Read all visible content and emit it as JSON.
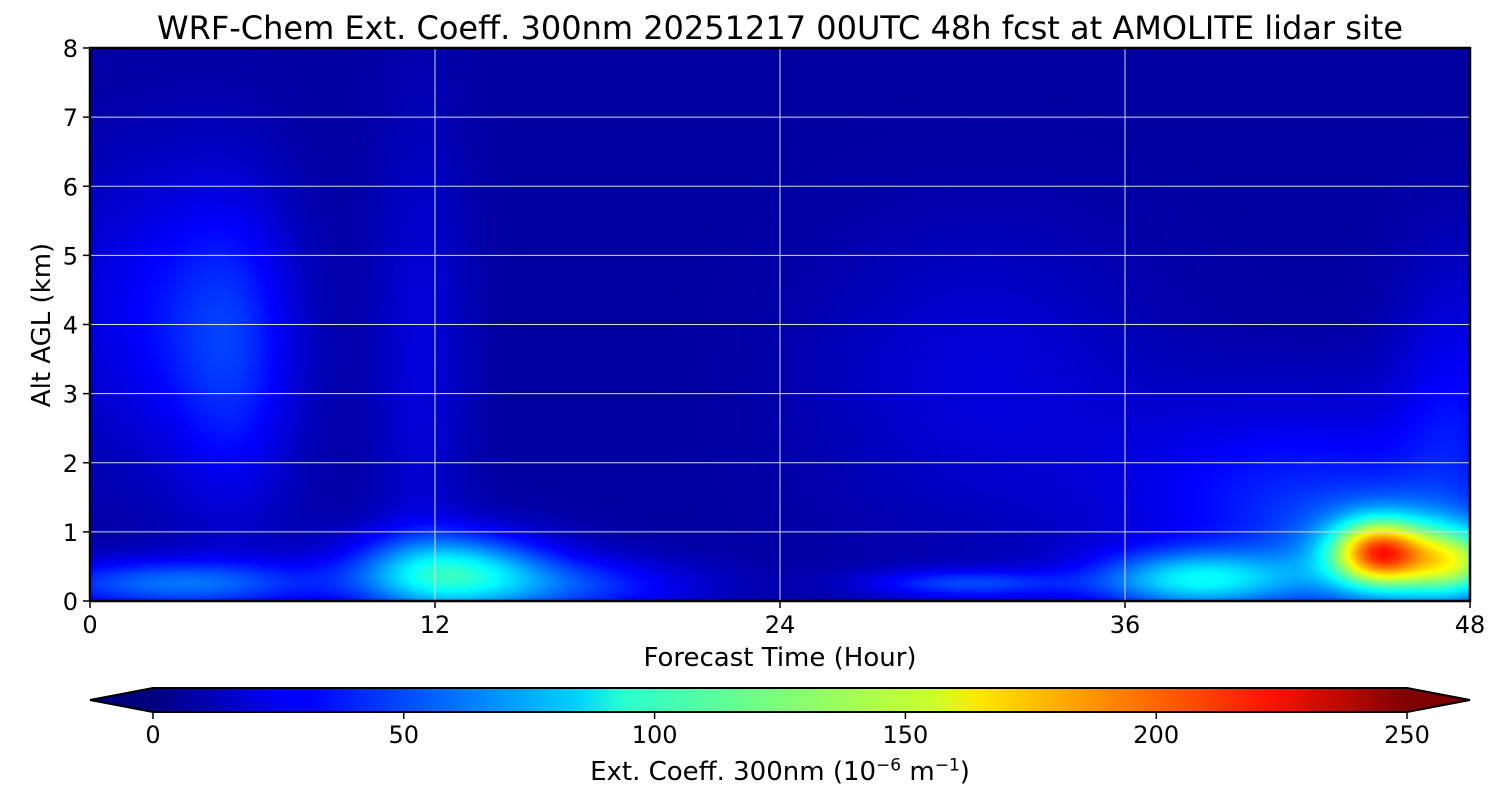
{
  "chart_data": {
    "type": "heatmap",
    "title": "WRF-Chem Ext. Coeff. 300nm  20251217 00UTC 48h fcst at AMOLITE lidar site",
    "xlabel": "Forecast Time (Hour)",
    "ylabel": "Alt AGL (km)",
    "xlim": [
      0,
      48
    ],
    "ylim": [
      0,
      8
    ],
    "xticks": [
      0,
      12,
      24,
      36,
      48
    ],
    "xtick_labels": [
      "0",
      "12",
      "24",
      "36",
      "48"
    ],
    "yticks": [
      0,
      1,
      2,
      3,
      4,
      5,
      6,
      7,
      8
    ],
    "ytick_labels": [
      "0",
      "1",
      "2",
      "3",
      "4",
      "5",
      "6",
      "7",
      "8"
    ],
    "grid": true,
    "colormap": "jet",
    "colorbar": {
      "orientation": "horizontal",
      "range": [
        0,
        250
      ],
      "extend": "both",
      "ticks": [
        0,
        50,
        100,
        150,
        200,
        250
      ],
      "tick_labels": [
        "0",
        "50",
        "100",
        "150",
        "200",
        "250"
      ],
      "label_main": "Ext. Coeff. 300nm  (10",
      "label_exp1": "−6",
      "label_mid": " m",
      "label_exp2": "−1",
      "label_end": ")"
    },
    "background_value": 8,
    "features": [
      {
        "cx": 5,
        "cy": 3.6,
        "sx": 1.6,
        "sy": 1.6,
        "value": 30
      },
      {
        "cx": 2,
        "cy": 4.2,
        "sx": 2.4,
        "sy": 1.5,
        "value": 20
      },
      {
        "cx": 11.5,
        "cy": 3.5,
        "sx": 1.2,
        "sy": 2.6,
        "value": 14
      },
      {
        "cx": 31,
        "cy": 3.2,
        "sx": 4.0,
        "sy": 1.5,
        "value": 14
      },
      {
        "cx": 42,
        "cy": 1.5,
        "sx": 4.5,
        "sy": 1.0,
        "value": 30
      },
      {
        "cx": 47.5,
        "cy": 2.8,
        "sx": 1.5,
        "sy": 1.5,
        "value": 20
      },
      {
        "cx": 3,
        "cy": 0.25,
        "sx": 3.5,
        "sy": 0.25,
        "value": 50
      },
      {
        "cx": 12.5,
        "cy": 0.4,
        "sx": 2.4,
        "sy": 0.4,
        "value": 85
      },
      {
        "cx": 17,
        "cy": 0.2,
        "sx": 3.0,
        "sy": 0.3,
        "value": 32
      },
      {
        "cx": 30.5,
        "cy": 0.25,
        "sx": 2.5,
        "sy": 0.15,
        "value": 38
      },
      {
        "cx": 38.5,
        "cy": 0.3,
        "sx": 2.5,
        "sy": 0.3,
        "value": 75
      },
      {
        "cx": 45.5,
        "cy": 0.6,
        "sx": 2.5,
        "sy": 0.55,
        "value": 60
      },
      {
        "cx": 44.8,
        "cy": 0.7,
        "sx": 1.1,
        "sy": 0.32,
        "value": 120
      },
      {
        "cx": 47.5,
        "cy": 0.55,
        "sx": 1.3,
        "sy": 0.35,
        "value": 80
      }
    ]
  }
}
